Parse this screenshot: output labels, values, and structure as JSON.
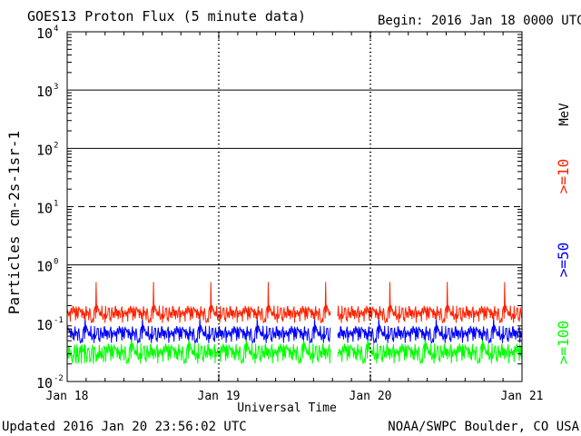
{
  "header": {
    "title": "GOES13 Proton Flux (5 minute data)",
    "begin": "Begin: 2016 Jan 18 0000 UTC"
  },
  "footer": {
    "updated": "Updated 2016 Jan 20 23:56:02 UTC",
    "credit": "NOAA/SWPC Boulder, CO USA"
  },
  "colors": {
    "ge10": "#ff2200",
    "ge50": "#0000ff",
    "ge100": "#00ff00",
    "frame": "#000000"
  },
  "chart_data": {
    "type": "line",
    "title": "GOES13 Proton Flux (5 minute data)",
    "xlabel": "Universal Time",
    "ylabel": "Particles cm-2s-1sr-1",
    "y_scale": "log",
    "ylim": [
      0.01,
      10000
    ],
    "xlim": [
      "2016-01-18",
      "2016-01-21"
    ],
    "x_ticks": [
      "Jan 18",
      "Jan 19",
      "Jan 20",
      "Jan 21"
    ],
    "y_ticks": [
      {
        "base": "10",
        "exp": "-2"
      },
      {
        "base": "10",
        "exp": "-1"
      },
      {
        "base": "10",
        "exp": "0"
      },
      {
        "base": "10",
        "exp": "1"
      },
      {
        "base": "10",
        "exp": "2"
      },
      {
        "base": "10",
        "exp": "3"
      },
      {
        "base": "10",
        "exp": "4"
      }
    ],
    "unit_label": "MeV",
    "threshold_lines": [
      {
        "value": 1,
        "style": "solid"
      },
      {
        "value": 10,
        "style": "dashed"
      },
      {
        "value": 100,
        "style": "solid"
      },
      {
        "value": 1000,
        "style": "solid"
      }
    ],
    "data_gaps": [
      [
        "2016-01-19 17:45",
        "2016-01-19 18:45"
      ]
    ],
    "series": [
      {
        "name": ">=10",
        "band": [
          0.1,
          0.2
        ],
        "spikes": [
          0.3,
          0.45
        ]
      },
      {
        "name": ">=50",
        "band": [
          0.045,
          0.09
        ],
        "spikes": [
          0.12
        ]
      },
      {
        "name": ">=100",
        "band": [
          0.02,
          0.045
        ],
        "spikes": [
          0.06
        ]
      }
    ]
  }
}
